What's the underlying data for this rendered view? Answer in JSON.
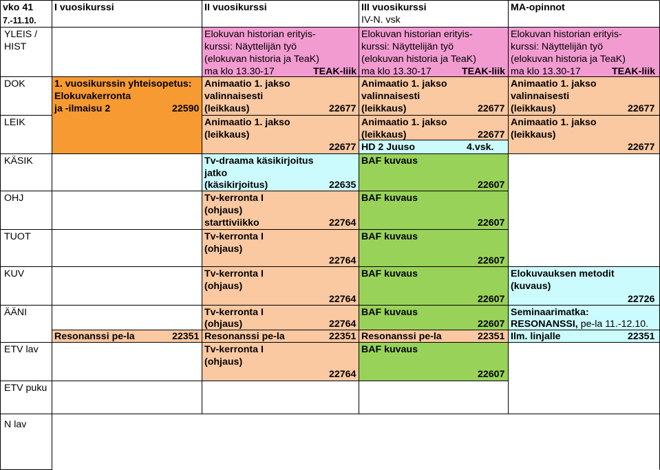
{
  "colors": {
    "pink": "#f29bd1",
    "orange": "#f79a32",
    "peach": "#fac8a1",
    "cyan": "#ccfbfe",
    "green": "#99d259"
  },
  "header": {
    "week": "vko 41",
    "dates": "7.-11.10.",
    "year1": "I vuosikurssi",
    "year2": "II vuosikurssi",
    "year3": "III vuosikurssi",
    "year3_sub": "IV-N. vsk",
    "ma": "MA-opinnot"
  },
  "rows": {
    "yleis": "YLEIS /",
    "hist": "HIST",
    "dok": "DOK",
    "leik": "LEIK",
    "kasik": "KÄSIK",
    "ohj": "OHJ",
    "tuot": "TUOT",
    "kuv": "KUV",
    "aani": "ÄÄNI",
    "etvlav": "ETV lav",
    "etvpuku": "ETV puku",
    "nlav": "N lav"
  },
  "hist": {
    "line1": "Elokuvan historian erityis-",
    "line2": "kurssi: Näyttelijän työ",
    "line3": "(elokuvan historia ja TeaK)",
    "time": "ma klo 13.30-17",
    "place": "TEAK-liik"
  },
  "dok": {
    "y1_line1": "1. vuosikurssin yhteisopetus:",
    "y1_line2": "Elokuvakerronta",
    "y1_line3": "ja -ilmaisu 2",
    "y1_code": "22590",
    "anim_line1": "Animaatio 1. jakso",
    "anim_line2": "valinnaisesti",
    "anim_line3": "(leikkaus)",
    "anim_code": "22677"
  },
  "leik": {
    "line1": "Animaatio 1. jakso",
    "line2": "(leikkaus)",
    "code": "22677",
    "hd": "HD 2 Juuso",
    "hd_vsk": "4.vsk."
  },
  "kasik": {
    "line1": "Tv-draama käsikirjoitus",
    "line2": "jatko",
    "line3": "(käsikirjoitus)",
    "code": "22635",
    "baf": "BAF kuvaus",
    "baf_code": "22607"
  },
  "tv": {
    "line1": "Tv-kerronta I",
    "line2": "(ohjaus)",
    "code": "22764",
    "start": "starttiviikko"
  },
  "kuv": {
    "ma_line1": "Elokuvauksen metodit",
    "ma_line2": "(kuvaus)",
    "ma_code": "22726"
  },
  "aani": {
    "ma_line1": "Seminaarimatka:",
    "ma_line2_bold": "RESONANSSI,",
    "ma_line2_rest": " pe-la 11.-12.10."
  },
  "resonanssi": {
    "label": "Resonanssi pe-la",
    "code": "22351",
    "ilm": "Ilm. linjalle"
  }
}
